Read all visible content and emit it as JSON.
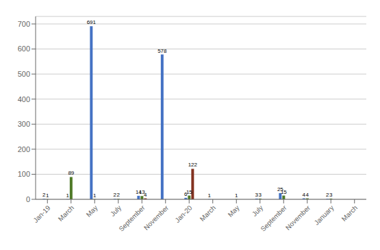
{
  "chart_data": {
    "type": "bar",
    "categories": [
      "Jan-19",
      "March",
      "May",
      "July",
      "September",
      "November",
      "Jan-20",
      "March",
      "May",
      "July",
      "September",
      "November",
      "January",
      "March"
    ],
    "series": [
      {
        "color": "#4472C4",
        "values": [
          2,
          1,
          691,
          2,
          14,
          578,
          6,
          1,
          0,
          3,
          25,
          4,
          2,
          0
        ],
        "value_labels": [
          "2",
          "1",
          "691",
          "2",
          "14",
          "578",
          "6",
          "1",
          null,
          "3",
          "25",
          "4",
          "2",
          null
        ]
      },
      {
        "color": "#4F7A28",
        "values": [
          1,
          89,
          1,
          2,
          13,
          0,
          15,
          0,
          1,
          3,
          15,
          4,
          3,
          0
        ],
        "value_labels": [
          "1",
          "89",
          "1",
          "2",
          "13",
          null,
          "15",
          null,
          "1",
          "3",
          "15",
          "4",
          "3",
          null
        ]
      },
      {
        "color": "#833220",
        "values": [
          0,
          0,
          0,
          0,
          4,
          0,
          122,
          0,
          0,
          0,
          0,
          0,
          0,
          0
        ],
        "value_labels": [
          null,
          null,
          null,
          null,
          "4",
          null,
          "122",
          null,
          null,
          null,
          null,
          null,
          null,
          null
        ]
      }
    ],
    "ylim": [
      0,
      730
    ],
    "yticks": [
      0,
      100,
      200,
      300,
      400,
      500,
      600,
      700
    ],
    "grid": true,
    "data_labels": true
  }
}
